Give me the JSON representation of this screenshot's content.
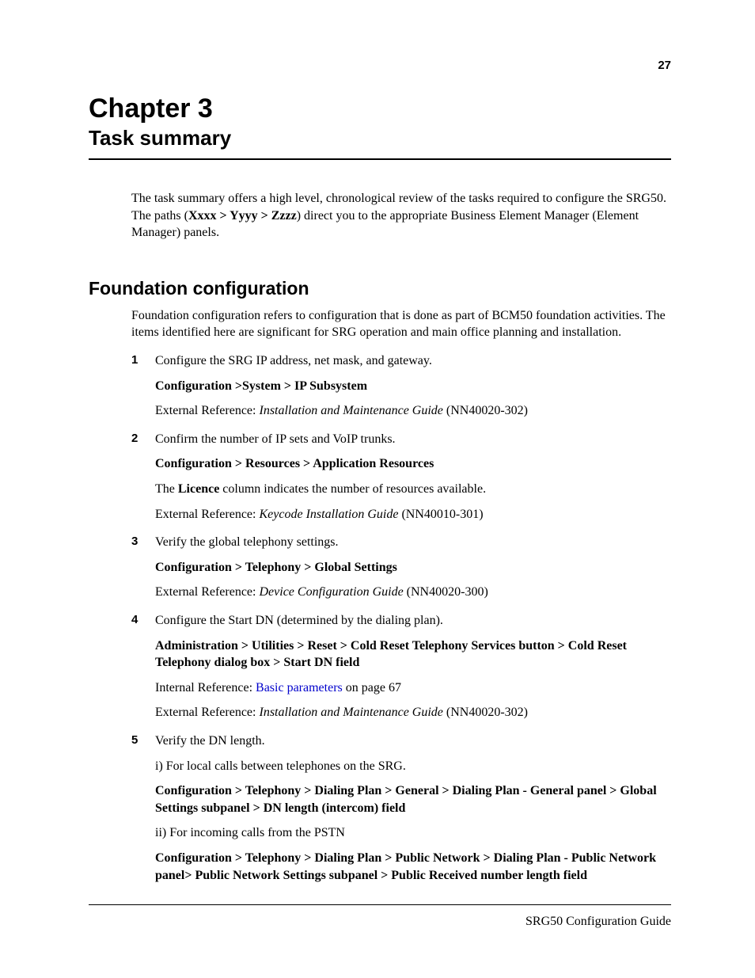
{
  "page_number": "27",
  "chapter_title": "Chapter 3",
  "chapter_sub": "Task summary",
  "intro_pre": "The task summary offers a high level, chronological review of the tasks required to configure the SRG50. The paths (",
  "intro_bold": "Xxxx > Yyyy > Zzzz",
  "intro_post": ") direct you to the appropriate Business Element Manager (Element Manager) panels.",
  "h2": "Foundation configuration",
  "section_intro": "Foundation configuration refers to configuration that is done as part of BCM50 foundation activities. The items identified here are significant for SRG operation and main office planning and installation.",
  "steps": {
    "s1": {
      "num": "1",
      "l1": "Configure the SRG IP address, net mask, and gateway.",
      "path": "Configuration >System > IP Subsystem",
      "ext_pre": "External Reference: ",
      "ext_i": "Installation and Maintenance Guide",
      "ext_post": " (NN40020-302)"
    },
    "s2": {
      "num": "2",
      "l1": "Confirm the number of IP sets and VoIP trunks.",
      "path": "Configuration > Resources > Application Resources",
      "lic_pre": "The ",
      "lic_b": "Licence",
      "lic_post": " column indicates the number of resources available.",
      "ext_pre": "External Reference: ",
      "ext_i": "Keycode Installation Guide",
      "ext_post": " (NN40010-301)"
    },
    "s3": {
      "num": "3",
      "l1": "Verify the global telephony settings.",
      "path": "Configuration > Telephony > Global Settings",
      "ext_pre": "External Reference: ",
      "ext_i": "Device Configuration Guide",
      "ext_post": " (NN40020-300)"
    },
    "s4": {
      "num": "4",
      "l1": "Configure the Start DN (determined by the dialing plan).",
      "path": "Administration > Utilities > Reset > Cold Reset Telephony Services button > Cold Reset Telephony dialog box > Start DN field",
      "int_pre": "Internal Reference: ",
      "int_link": "Basic parameters",
      "int_post": " on page 67",
      "ext_pre": "External Reference: ",
      "ext_i": "Installation and Maintenance Guide",
      "ext_post": " (NN40020-302)"
    },
    "s5": {
      "num": "5",
      "l1": "Verify the DN length.",
      "sub_i": "i) For local calls between telephones on the SRG.",
      "path_i": "Configuration > Telephony > Dialing Plan > General > Dialing Plan - General panel > Global Settings subpanel > DN length (intercom) field",
      "sub_ii": "ii) For incoming calls from the PSTN",
      "path_ii": "Configuration > Telephony > Dialing Plan > Public Network > Dialing Plan - Public Network panel> Public Network Settings subpanel > Public Received number length field"
    }
  },
  "footer": "SRG50 Configuration Guide",
  "colors": {
    "text": "#000000",
    "link": "#0000cc",
    "background": "#ffffff"
  },
  "fonts": {
    "serif": "Times New Roman",
    "sans": "Arial"
  }
}
